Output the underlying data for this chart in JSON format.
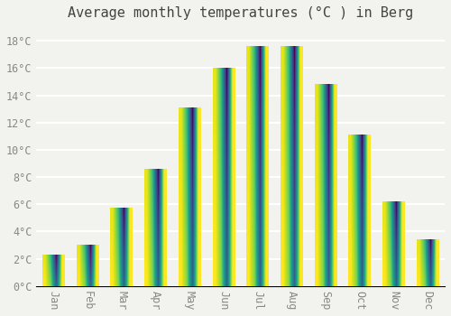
{
  "title": "Average monthly temperatures (°C ) in Berg",
  "months": [
    "Jan",
    "Feb",
    "Mar",
    "Apr",
    "May",
    "Jun",
    "Jul",
    "Aug",
    "Sep",
    "Oct",
    "Nov",
    "Dec"
  ],
  "values": [
    2.3,
    3.0,
    5.7,
    8.6,
    13.1,
    16.0,
    17.6,
    17.6,
    14.8,
    11.1,
    6.2,
    3.4
  ],
  "bar_color_light": "#FFD050",
  "bar_color_dark": "#F5A800",
  "ylim": [
    0,
    19
  ],
  "yticks": [
    0,
    2,
    4,
    6,
    8,
    10,
    12,
    14,
    16,
    18
  ],
  "ytick_labels": [
    "0°C",
    "2°C",
    "4°C",
    "6°C",
    "8°C",
    "10°C",
    "12°C",
    "14°C",
    "16°C",
    "18°C"
  ],
  "background_color": "#F2F2EE",
  "grid_color": "#FFFFFF",
  "title_fontsize": 11,
  "tick_fontsize": 8.5,
  "bar_edge_color": "none",
  "bar_width": 0.65,
  "figsize": [
    5.0,
    3.5
  ],
  "dpi": 100
}
